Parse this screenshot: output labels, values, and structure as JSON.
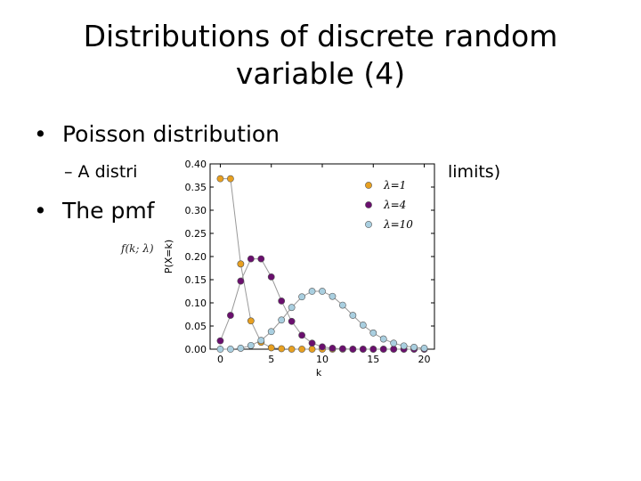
{
  "slide": {
    "title_line1": "Distributions of discrete random",
    "title_line2": "variable (4)",
    "bullet1_marker": "•",
    "bullet1_text": "Poisson distribution",
    "sub1_left": "– A distri",
    "sub1_right": "limits)",
    "bullet2_marker": "•",
    "bullet2_text": "The pmf",
    "formula_fragment": "f(k; λ)"
  },
  "chart_data": {
    "type": "line",
    "xlabel": "k",
    "ylabel": "P(X=k)",
    "xlim": [
      -1,
      21
    ],
    "ylim": [
      0,
      0.4
    ],
    "xticks": [
      0,
      5,
      10,
      15,
      20
    ],
    "yticks": [
      0.0,
      0.05,
      0.1,
      0.15,
      0.2,
      0.25,
      0.3,
      0.35,
      0.4
    ],
    "grid": false,
    "legend_position": "top-right",
    "x": [
      0,
      1,
      2,
      3,
      4,
      5,
      6,
      7,
      8,
      9,
      10,
      11,
      12,
      13,
      14,
      15,
      16,
      17,
      18,
      19,
      20
    ],
    "series": [
      {
        "name": "λ=1",
        "color": "#e8a020",
        "values": [
          0.368,
          0.368,
          0.184,
          0.061,
          0.015,
          0.003,
          0.001,
          0,
          0,
          0,
          0,
          0,
          0,
          0,
          0,
          0,
          0,
          0,
          0,
          0,
          0
        ]
      },
      {
        "name": "λ=4",
        "color": "#6a0f6e",
        "values": [
          0.018,
          0.073,
          0.147,
          0.195,
          0.195,
          0.156,
          0.104,
          0.06,
          0.03,
          0.013,
          0.005,
          0.002,
          0.001,
          0,
          0,
          0,
          0,
          0,
          0,
          0,
          0
        ]
      },
      {
        "name": "λ=10",
        "color": "#a9cfe0",
        "values": [
          0.0,
          0.0,
          0.002,
          0.008,
          0.019,
          0.038,
          0.063,
          0.09,
          0.113,
          0.125,
          0.125,
          0.114,
          0.095,
          0.073,
          0.052,
          0.035,
          0.022,
          0.013,
          0.007,
          0.004,
          0.002
        ]
      }
    ]
  }
}
